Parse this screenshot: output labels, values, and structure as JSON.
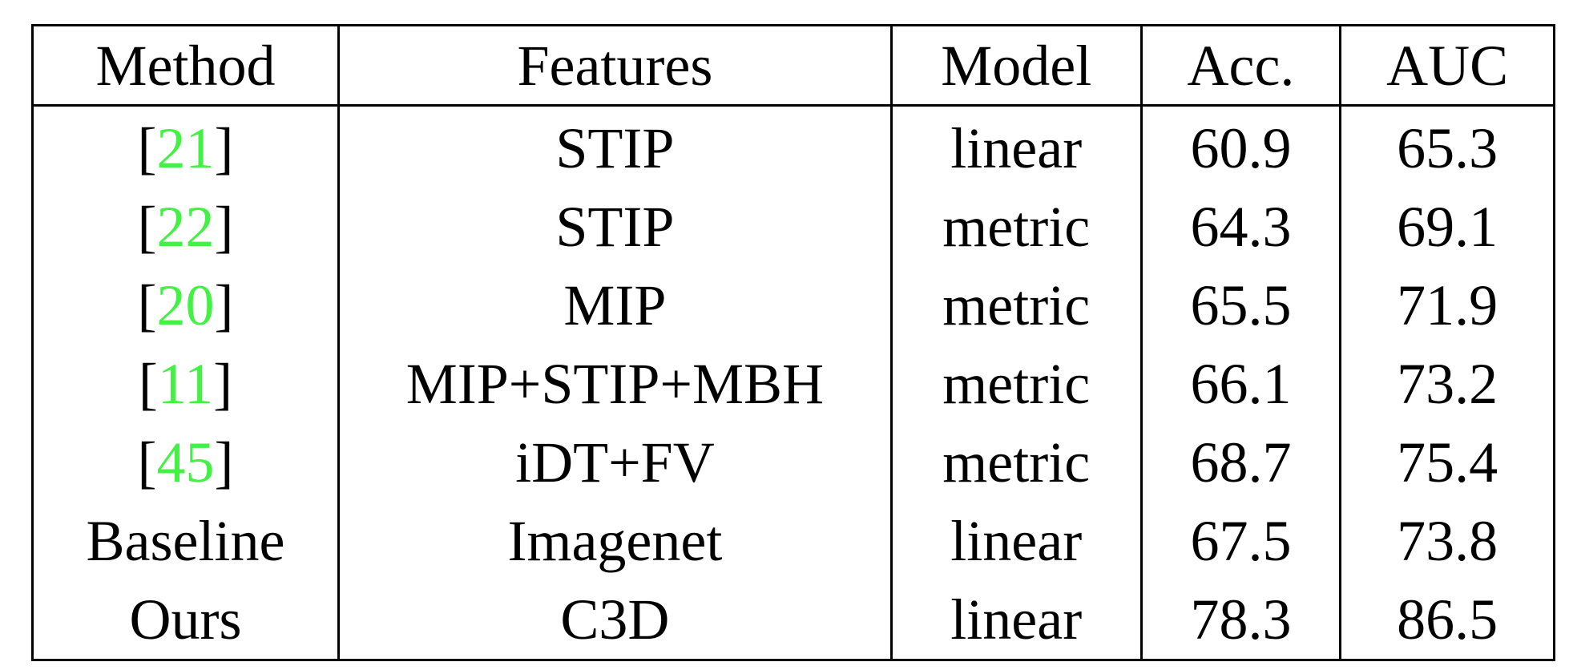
{
  "table": {
    "headers": {
      "method": "Method",
      "features": "Features",
      "model": "Model",
      "acc": "Acc.",
      "auc": "AUC"
    },
    "citation_color": "#43f144",
    "rows": [
      {
        "method": {
          "open": "[",
          "ref": "21",
          "close": "]"
        },
        "features": "STIP",
        "model": "linear",
        "acc": "60.9",
        "auc": "65.3"
      },
      {
        "method": {
          "open": "[",
          "ref": "22",
          "close": "]"
        },
        "features": "STIP",
        "model": "metric",
        "acc": "64.3",
        "auc": "69.1"
      },
      {
        "method": {
          "open": "[",
          "ref": "20",
          "close": "]"
        },
        "features": "MIP",
        "model": "metric",
        "acc": "65.5",
        "auc": "71.9"
      },
      {
        "method": {
          "open": "[",
          "ref": "11",
          "close": "]"
        },
        "features": "MIP+STIP+MBH",
        "model": "metric",
        "acc": "66.1",
        "auc": "73.2"
      },
      {
        "method": {
          "open": "[",
          "ref": "45",
          "close": "]"
        },
        "features": "iDT+FV",
        "model": "metric",
        "acc": "68.7",
        "auc": "75.4"
      },
      {
        "method": "Baseline",
        "features": "Imagenet",
        "model": "linear",
        "acc": "67.5",
        "auc": "73.8"
      },
      {
        "method": "Ours",
        "features": "C3D",
        "model": "linear",
        "acc": "78.3",
        "auc": "86.5",
        "bold": true
      }
    ]
  }
}
